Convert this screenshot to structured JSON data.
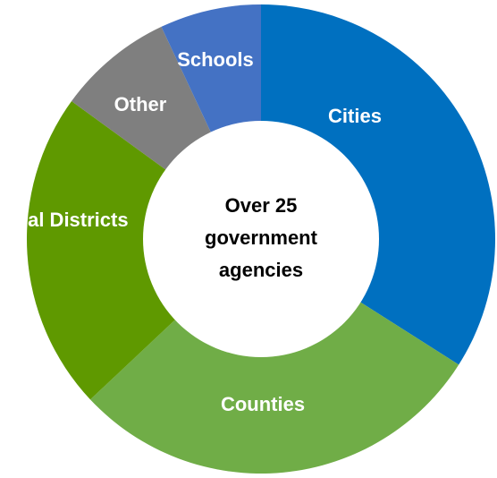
{
  "chart_data": {
    "type": "donut",
    "categories": [
      "Cities",
      "Counties",
      "Special Districts",
      "Other",
      "Schools"
    ],
    "values": [
      34,
      29,
      22,
      8,
      7
    ],
    "colors": [
      "#0070c0",
      "#70ad47",
      "#5f9900",
      "#7f7f7f",
      "#4472c4"
    ],
    "center_text": [
      "Over 25",
      "government",
      "agencies"
    ]
  }
}
